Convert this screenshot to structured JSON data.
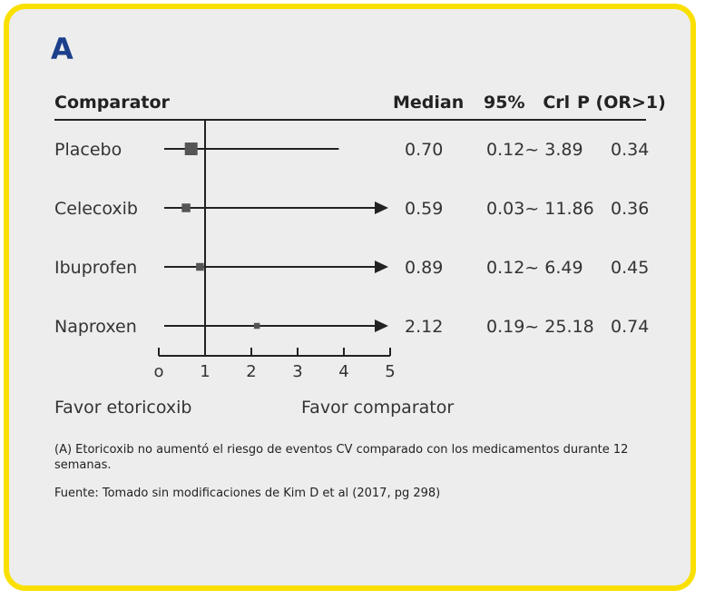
{
  "panel_label": "A",
  "headers": {
    "comparator": "Comparator",
    "median": "Median",
    "ci": "95%   Crl",
    "p": "P (OR>1)"
  },
  "rows": [
    {
      "comparator": "Placebo",
      "median": "0.70",
      "ci": "0.12~ 3.89",
      "p": "0.34"
    },
    {
      "comparator": "Celecoxib",
      "median": "0.59",
      "ci": "0.03~ 11.86",
      "p": "0.36"
    },
    {
      "comparator": "Ibuprofen",
      "median": "0.89",
      "ci": "0.12~ 6.49",
      "p": "0.45"
    },
    {
      "comparator": "Naproxen",
      "median": "2.12",
      "ci": "0.19~ 25.18",
      "p": "0.74"
    }
  ],
  "favor_left": "Favor etoricoxib",
  "favor_right": "Favor comparator",
  "caption": "(A) Etoricoxib no aumentó el riesgo de eventos CV comparado con los medicamentos durante 12 semanas.",
  "source": "Fuente: Tomado sin modificaciones de Kim D et al (2017, pg 298)",
  "chart_data": {
    "type": "forest",
    "xlim": [
      0,
      5
    ],
    "ticks": [
      0,
      1,
      2,
      3,
      4,
      5
    ],
    "tick_labels": [
      "o",
      "1",
      "2",
      "3",
      "4",
      "5"
    ],
    "reference_line": 1,
    "series": [
      {
        "name": "Placebo",
        "median": 0.7,
        "lower": 0.12,
        "upper": 3.89,
        "weight": 1.0
      },
      {
        "name": "Celecoxib",
        "median": 0.59,
        "lower": 0.03,
        "upper": 11.86,
        "weight": 0.55
      },
      {
        "name": "Ibuprofen",
        "median": 0.89,
        "lower": 0.12,
        "upper": 6.49,
        "weight": 0.45
      },
      {
        "name": "Naproxen",
        "median": 2.12,
        "lower": 0.19,
        "upper": 25.18,
        "weight": 0.25
      }
    ]
  },
  "colors": {
    "frame": "#f9e000",
    "background": "#ededed",
    "title": "#1b3f8b",
    "marker": "#555555",
    "line": "#222222"
  }
}
